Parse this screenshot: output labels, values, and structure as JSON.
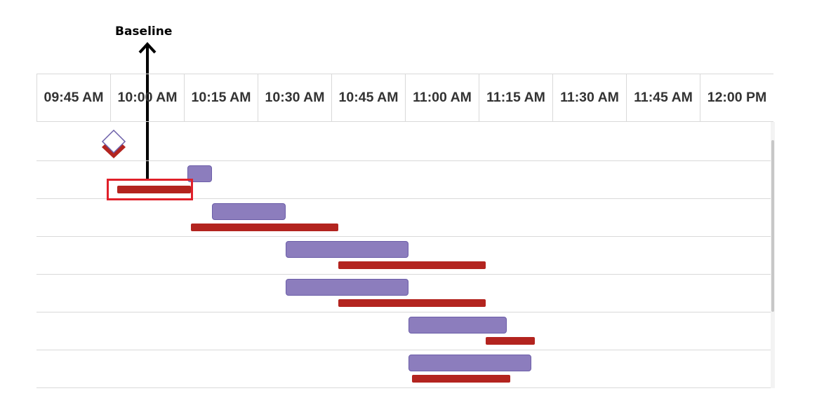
{
  "annotation": {
    "label": "Baseline"
  },
  "timeline": {
    "labels": [
      "09:45 AM",
      "10:00 AM",
      "10:15 AM",
      "10:30 AM",
      "10:45 AM",
      "11:00 AM",
      "11:15 AM",
      "11:30 AM",
      "11:45 AM",
      "12:00 PM"
    ]
  },
  "colors": {
    "task": "#8c7dbd",
    "baseline": "#b3241f",
    "highlight": "#e0202a",
    "milestone_outline": "#6b5ea8"
  },
  "tasks": [
    {
      "type": "milestone",
      "start": "10:00 AM",
      "baseline_start": "10:00 AM"
    },
    {
      "type": "task",
      "start": "10:15 AM",
      "end": "10:20 AM",
      "baseline_start": "10:00 AM",
      "baseline_end": "10:15 AM"
    },
    {
      "type": "task",
      "start": "10:20 AM",
      "end": "10:35 AM",
      "baseline_start": "10:15 AM",
      "baseline_end": "10:45 AM"
    },
    {
      "type": "task",
      "start": "10:35 AM",
      "end": "11:00 AM",
      "baseline_start": "10:45 AM",
      "baseline_end": "11:15 AM"
    },
    {
      "type": "task",
      "start": "10:35 AM",
      "end": "11:00 AM",
      "baseline_start": "10:45 AM",
      "baseline_end": "11:15 AM"
    },
    {
      "type": "task",
      "start": "11:00 AM",
      "end": "11:20 AM",
      "baseline_start": "11:15 AM",
      "baseline_end": "11:25 AM"
    },
    {
      "type": "task",
      "start": "11:00 AM",
      "end": "11:25 AM",
      "baseline_start": "11:00 AM",
      "baseline_end": "11:20 AM"
    }
  ]
}
